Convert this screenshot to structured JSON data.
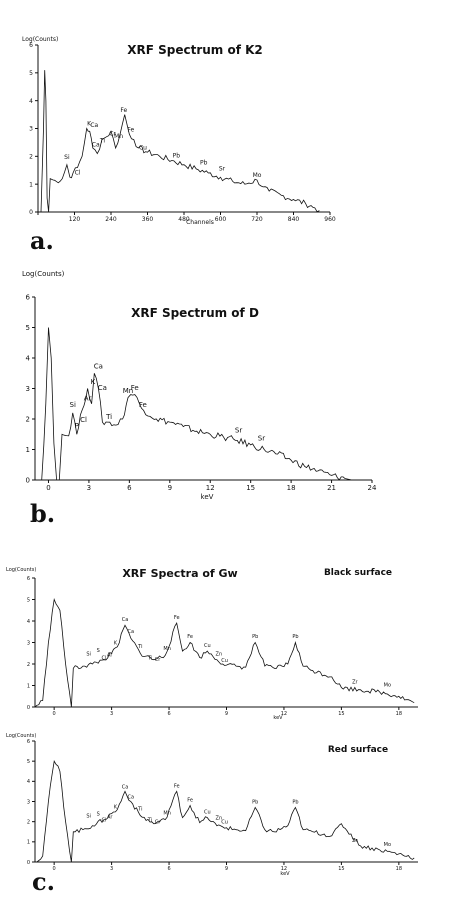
{
  "chart_data": [
    {
      "type": "line",
      "caption": "a.",
      "title": "XRF Spectrum of K2",
      "ylabel": "Log(Counts)",
      "xlabel": "Channels",
      "xlim": [
        0,
        960
      ],
      "ylim": [
        0,
        6
      ],
      "xticks": [
        0,
        120,
        240,
        360,
        480,
        600,
        720,
        840,
        960
      ],
      "xtick_labels": [
        "",
        "120",
        "240",
        "360",
        "480",
        "600",
        "720",
        "840",
        "960"
      ],
      "yticks": [
        0,
        1,
        2,
        3,
        4,
        5,
        6
      ],
      "x": [
        0,
        10,
        18,
        22,
        26,
        30,
        35,
        40,
        50,
        60,
        80,
        95,
        105,
        115,
        130,
        145,
        160,
        170,
        180,
        195,
        210,
        225,
        240,
        255,
        270,
        285,
        300,
        315,
        330,
        360,
        400,
        440,
        480,
        520,
        560,
        600,
        640,
        680,
        720,
        740,
        760,
        800,
        840,
        880,
        910,
        925
      ],
      "y": [
        0,
        0,
        3.0,
        5.1,
        4.0,
        0.5,
        0,
        1.2,
        1.15,
        1.1,
        1.2,
        1.7,
        1.25,
        1.4,
        1.6,
        2.0,
        3.0,
        2.9,
        2.3,
        2.1,
        2.6,
        2.7,
        2.9,
        2.3,
        2.8,
        3.5,
        2.8,
        2.6,
        2.3,
        2.15,
        2.0,
        1.85,
        1.7,
        1.55,
        1.4,
        1.25,
        1.1,
        1.0,
        1.15,
        0.9,
        0.75,
        0.6,
        0.45,
        0.3,
        0.15,
        0.05
      ],
      "peak_labels": [
        {
          "label": "Si",
          "x": 95,
          "y": 1.9
        },
        {
          "label": "Cl",
          "x": 130,
          "y": 1.35
        },
        {
          "label": "K",
          "x": 168,
          "y": 3.1
        },
        {
          "label": "Ca",
          "x": 185,
          "y": 3.05
        },
        {
          "label": "Ca",
          "x": 190,
          "y": 2.35
        },
        {
          "label": "Ti",
          "x": 212,
          "y": 2.5
        },
        {
          "label": "Cr",
          "x": 245,
          "y": 2.75
        },
        {
          "label": "Mn",
          "x": 265,
          "y": 2.65
        },
        {
          "label": "Fe",
          "x": 282,
          "y": 3.6
        },
        {
          "label": "Fe",
          "x": 305,
          "y": 2.9
        },
        {
          "label": "Cu",
          "x": 345,
          "y": 2.25
        },
        {
          "label": "Pb",
          "x": 455,
          "y": 1.95
        },
        {
          "label": "Pb",
          "x": 545,
          "y": 1.7
        },
        {
          "label": "Sr",
          "x": 605,
          "y": 1.5
        },
        {
          "label": "Mo",
          "x": 720,
          "y": 1.25
        }
      ]
    },
    {
      "type": "line",
      "caption": "b.",
      "title": "XRF Spectrum of D",
      "ylabel": "Log(Counts)",
      "xlabel": "keV",
      "xlim": [
        -1,
        24
      ],
      "ylim": [
        0,
        6
      ],
      "xticks": [
        0,
        3,
        6,
        9,
        12,
        15,
        18,
        21,
        24
      ],
      "xtick_labels": [
        "0",
        "3",
        "6",
        "9",
        "12",
        "15",
        "18",
        "21",
        "24"
      ],
      "yticks": [
        0,
        1,
        2,
        3,
        4,
        5,
        6
      ],
      "x": [
        -1,
        -0.5,
        -0.2,
        0,
        0.2,
        0.4,
        0.6,
        0.8,
        1.0,
        1.5,
        1.8,
        2.1,
        2.5,
        2.9,
        3.2,
        3.4,
        3.7,
        4.0,
        4.4,
        5.0,
        5.5,
        5.9,
        6.1,
        6.4,
        6.9,
        8,
        9,
        10,
        11,
        12,
        13,
        14,
        15,
        16,
        17,
        18,
        19,
        20,
        21,
        22,
        22.5
      ],
      "y": [
        0,
        0,
        2.5,
        5.0,
        4.0,
        1.2,
        0,
        0,
        1.5,
        1.45,
        2.2,
        1.5,
        2.3,
        3.0,
        2.5,
        3.5,
        3.0,
        1.9,
        1.9,
        1.8,
        2.0,
        2.7,
        2.8,
        2.8,
        2.35,
        2.0,
        1.9,
        1.75,
        1.6,
        1.5,
        1.4,
        1.3,
        1.15,
        1.0,
        0.85,
        0.65,
        0.45,
        0.3,
        0.15,
        0.05,
        0.0
      ],
      "peak_labels": [
        {
          "label": "Si",
          "x": 1.8,
          "y": 2.4
        },
        {
          "label": "P",
          "x": 2.1,
          "y": 1.7
        },
        {
          "label": "Cl",
          "x": 2.6,
          "y": 1.9
        },
        {
          "label": "Ar",
          "x": 2.9,
          "y": 2.6
        },
        {
          "label": "K",
          "x": 3.3,
          "y": 3.15
        },
        {
          "label": "Ca",
          "x": 3.7,
          "y": 3.65
        },
        {
          "label": "Ca",
          "x": 4.0,
          "y": 2.95
        },
        {
          "label": "Ti",
          "x": 4.5,
          "y": 2.0
        },
        {
          "label": "Mn",
          "x": 5.9,
          "y": 2.85
        },
        {
          "label": "Fe",
          "x": 6.4,
          "y": 2.95
        },
        {
          "label": "Fe",
          "x": 7.0,
          "y": 2.4
        },
        {
          "label": "Sr",
          "x": 14.1,
          "y": 1.55
        },
        {
          "label": "Sr",
          "x": 15.8,
          "y": 1.3
        }
      ]
    },
    {
      "type": "line",
      "title": "XRF Spectra of Gw",
      "subtitle": "Black surface",
      "ylabel": "Log(Counts)",
      "xlabel": "keV",
      "xlim": [
        -1,
        19
      ],
      "ylim": [
        0,
        6
      ],
      "xticks": [
        0,
        3,
        6,
        9,
        12,
        15,
        18
      ],
      "xtick_labels": [
        "0",
        "3",
        "6",
        "9",
        "12",
        "15",
        "18"
      ],
      "yticks": [
        0,
        1,
        2,
        3,
        4,
        5,
        6
      ],
      "x": [
        -1,
        -0.6,
        -0.3,
        0,
        0.3,
        0.6,
        0.9,
        1.0,
        1.5,
        2.0,
        2.6,
        3.0,
        3.3,
        3.7,
        4.0,
        4.5,
        5.2,
        5.8,
        6.4,
        6.7,
        7.1,
        7.6,
        8.0,
        8.5,
        9.0,
        9.5,
        10.0,
        10.5,
        11.0,
        11.5,
        12.2,
        12.6,
        13.0,
        13.5,
        14.5,
        15.0,
        16.0,
        17.0,
        18.0,
        18.8
      ],
      "y": [
        0,
        0.3,
        3.0,
        5.0,
        4.5,
        2.0,
        0,
        1.8,
        1.9,
        2.0,
        2.2,
        2.5,
        2.8,
        3.8,
        3.2,
        2.5,
        2.2,
        2.4,
        3.9,
        2.6,
        3.0,
        2.3,
        2.6,
        2.2,
        1.95,
        1.9,
        1.85,
        3.0,
        1.9,
        1.8,
        2.0,
        3.0,
        1.9,
        1.7,
        1.4,
        0.9,
        0.8,
        0.7,
        0.5,
        0.2
      ],
      "peak_labels": [
        {
          "label": "Si",
          "x": 1.8,
          "y": 2.4
        },
        {
          "label": "S",
          "x": 2.3,
          "y": 2.55
        },
        {
          "label": "Cl",
          "x": 2.6,
          "y": 2.2
        },
        {
          "label": "Ar",
          "x": 2.9,
          "y": 2.35
        },
        {
          "label": "K",
          "x": 3.2,
          "y": 2.9
        },
        {
          "label": "Ca",
          "x": 3.7,
          "y": 4.0
        },
        {
          "label": "Ca",
          "x": 4.0,
          "y": 3.45
        },
        {
          "label": "Ti",
          "x": 4.5,
          "y": 2.75
        },
        {
          "label": "Ti",
          "x": 5.0,
          "y": 2.2
        },
        {
          "label": "Cr",
          "x": 5.4,
          "y": 2.15
        },
        {
          "label": "Mn",
          "x": 5.9,
          "y": 2.65
        },
        {
          "label": "Fe",
          "x": 6.4,
          "y": 4.1
        },
        {
          "label": "Fe",
          "x": 7.1,
          "y": 3.2
        },
        {
          "label": "Cu",
          "x": 8.0,
          "y": 2.8
        },
        {
          "label": "Zn",
          "x": 8.6,
          "y": 2.4
        },
        {
          "label": "Cu",
          "x": 8.9,
          "y": 2.1
        },
        {
          "label": "Pb",
          "x": 10.5,
          "y": 3.2
        },
        {
          "label": "Pb",
          "x": 12.6,
          "y": 3.2
        },
        {
          "label": "Zr",
          "x": 15.7,
          "y": 1.1
        },
        {
          "label": "Mo",
          "x": 17.4,
          "y": 0.95
        }
      ]
    },
    {
      "type": "line",
      "caption": "c.",
      "title": "",
      "subtitle": "Red surface",
      "ylabel": "Log(Counts)",
      "xlabel": "keV",
      "xlim": [
        -1,
        19
      ],
      "ylim": [
        0,
        6
      ],
      "xticks": [
        0,
        3,
        6,
        9,
        12,
        15,
        18
      ],
      "xtick_labels": [
        "0",
        "3",
        "6",
        "9",
        "12",
        "15",
        "18"
      ],
      "yticks": [
        0,
        1,
        2,
        3,
        4,
        5,
        6
      ],
      "x": [
        -1,
        -0.6,
        -0.3,
        0,
        0.3,
        0.6,
        0.9,
        1.0,
        1.5,
        2.0,
        2.6,
        3.0,
        3.3,
        3.7,
        4.0,
        4.5,
        5.2,
        5.8,
        6.4,
        6.7,
        7.1,
        7.6,
        8.0,
        8.5,
        9.0,
        9.5,
        10.0,
        10.5,
        11.0,
        11.5,
        12.2,
        12.6,
        13.0,
        13.5,
        14.5,
        15.0,
        16.0,
        17.0,
        18.0,
        18.8
      ],
      "y": [
        0,
        0.3,
        3.0,
        5.0,
        4.5,
        2.0,
        0,
        1.5,
        1.6,
        1.8,
        2.1,
        2.4,
        2.6,
        3.5,
        3.0,
        2.3,
        1.9,
        2.1,
        3.5,
        2.2,
        2.8,
        1.95,
        2.2,
        1.8,
        1.7,
        1.6,
        1.55,
        2.7,
        1.6,
        1.5,
        1.8,
        2.7,
        1.6,
        1.5,
        1.3,
        1.9,
        0.8,
        0.6,
        0.4,
        0.2
      ],
      "peak_labels": [
        {
          "label": "Si",
          "x": 1.8,
          "y": 2.2
        },
        {
          "label": "S",
          "x": 2.3,
          "y": 2.3
        },
        {
          "label": "Cl",
          "x": 2.6,
          "y": 2.0
        },
        {
          "label": "Ar",
          "x": 2.9,
          "y": 2.15
        },
        {
          "label": "K",
          "x": 3.2,
          "y": 2.65
        },
        {
          "label": "Ca",
          "x": 3.7,
          "y": 3.65
        },
        {
          "label": "Ca",
          "x": 4.0,
          "y": 3.15
        },
        {
          "label": "Ti",
          "x": 4.5,
          "y": 2.55
        },
        {
          "label": "Ti",
          "x": 5.0,
          "y": 2.0
        },
        {
          "label": "Cr",
          "x": 5.4,
          "y": 1.9
        },
        {
          "label": "Mn",
          "x": 5.9,
          "y": 2.35
        },
        {
          "label": "Fe",
          "x": 6.4,
          "y": 3.7
        },
        {
          "label": "Fe",
          "x": 7.1,
          "y": 3.0
        },
        {
          "label": "Cu",
          "x": 8.0,
          "y": 2.4
        },
        {
          "label": "Zn",
          "x": 8.6,
          "y": 2.1
        },
        {
          "label": "Cu",
          "x": 8.9,
          "y": 1.9
        },
        {
          "label": "Pb",
          "x": 10.5,
          "y": 2.9
        },
        {
          "label": "Pb",
          "x": 12.6,
          "y": 2.9
        },
        {
          "label": "Zr",
          "x": 15.7,
          "y": 1.0
        },
        {
          "label": "Mo",
          "x": 17.4,
          "y": 0.8
        }
      ]
    }
  ]
}
